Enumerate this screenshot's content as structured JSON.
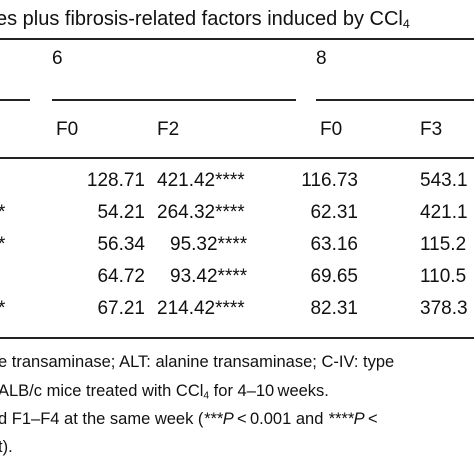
{
  "title": "es plus fibrosis-related factors induced by CCl",
  "title_sub": "4",
  "header": {
    "week_6": "6",
    "week_8": "8",
    "groups": [
      "F0",
      "F2",
      "F0",
      "F3"
    ]
  },
  "rows": [
    {
      "mark": "",
      "values": [
        "128.71",
        "421.42****",
        "116.73",
        "543.1"
      ]
    },
    {
      "mark": "*",
      "values": [
        "54.21",
        "264.32****",
        "62.31",
        "421.1"
      ]
    },
    {
      "mark": "*",
      "values": [
        "56.34",
        "95.32****",
        "63.16",
        "115.2"
      ]
    },
    {
      "mark": "",
      "values": [
        "64.72",
        "93.42****",
        "69.65",
        "110.5"
      ]
    },
    {
      "mark": "*",
      "values": [
        "67.21",
        "214.42****",
        "82.31",
        "378.3"
      ]
    }
  ],
  "footnotes": {
    "line1": "e transaminase; ALT: alanine transaminase; C-IV: type",
    "line2_a": "ALB/c mice treated with CCl",
    "line2_sub": "4",
    "line2_b": " for 4–10 weeks.",
    "line3_a": "d F1–F4 at the same week (",
    "line3_b": "***P",
    "line3_c": " < 0.001 and ",
    "line3_d": "****P",
    "line3_e": " <",
    "line4": "t)."
  }
}
